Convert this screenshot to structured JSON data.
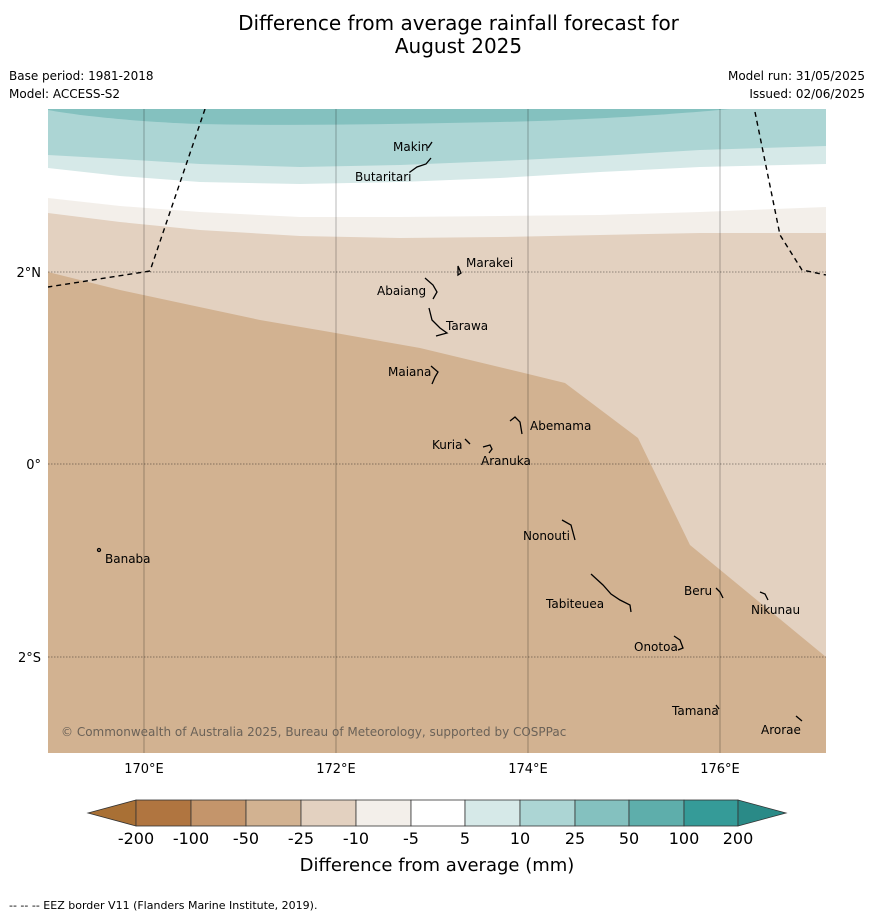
{
  "title_line1": "Difference from average rainfall forecast for",
  "title_line2": "August 2025",
  "base_period": "Base period: 1981-2018",
  "model": "Model: ACCESS-S2",
  "model_run": "Model run: 31/05/2025",
  "issued": "Issued: 02/06/2025",
  "copyright": "© Commonwealth of Australia 2025, Bureau of Meteorology, supported by COSPPac",
  "axes": {
    "lon_labels": [
      "170°E",
      "172°E",
      "174°E",
      "176°E"
    ],
    "lat_labels": [
      "2°N",
      "0°",
      "2°S"
    ]
  },
  "islands": [
    {
      "name": "Makin"
    },
    {
      "name": "Butaritari"
    },
    {
      "name": "Marakei"
    },
    {
      "name": "Abaiang"
    },
    {
      "name": "Tarawa"
    },
    {
      "name": "Maiana"
    },
    {
      "name": "Abemama"
    },
    {
      "name": "Kuria"
    },
    {
      "name": "Aranuka"
    },
    {
      "name": "Nonouti"
    },
    {
      "name": "Banaba"
    },
    {
      "name": "Beru"
    },
    {
      "name": "Nikunau"
    },
    {
      "name": "Tabiteuea"
    },
    {
      "name": "Onotoa"
    },
    {
      "name": "Tamana"
    },
    {
      "name": "Arorae"
    }
  ],
  "legend": {
    "title": "Difference from average (mm)",
    "ticks": [
      "-200",
      "-100",
      "-50",
      "-25",
      "-10",
      "-5",
      "5",
      "10",
      "25",
      "50",
      "100",
      "200"
    ],
    "colors": [
      "#a97035",
      "#b07540",
      "#c4956b",
      "#d2b291",
      "#e3d1c0",
      "#f3efea",
      "#ffffff",
      "#d6e9e8",
      "#acd5d4",
      "#84c1bf",
      "#5eaeab",
      "#359b98",
      "#2a8a87"
    ]
  },
  "footer": "--  --  -- EEZ border V11 (Flanders Marine Institute, 2019)."
}
